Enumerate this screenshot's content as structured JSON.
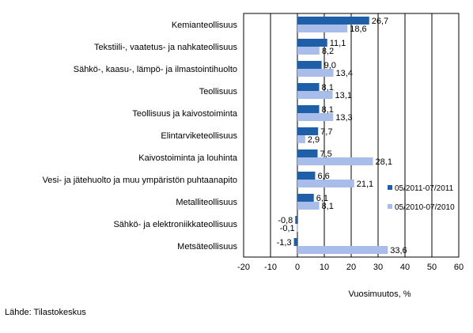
{
  "chart_data": {
    "type": "bar",
    "orientation": "horizontal",
    "categories": [
      "Kemianteollisuus",
      "Tekstiili-, vaatetus- ja nahkateollisuus",
      "Sähkö-, kaasu-, lämpö- ja ilmastointihuolto",
      "Teollisuus",
      "Teollisuus ja kaivostoiminta",
      "Elintarviketeollisuus",
      "Kaivostoiminta ja louhinta",
      "Vesi- ja jätehuolto ja muu ympäristön puhtaanapito",
      "Metalliteollisuus",
      "Sähkö- ja elektroniikkateollisuus",
      "Metsäteollisuus"
    ],
    "series": [
      {
        "name": "05/2011-07/2011",
        "color": "#1F5FA8",
        "values": [
          26.7,
          11.1,
          9.0,
          8.1,
          8.1,
          7.7,
          7.5,
          6.6,
          6.1,
          -0.8,
          -1.3
        ],
        "labels": [
          "26,7",
          "11,1",
          "9,0",
          "8,1",
          "8,1",
          "7,7",
          "7,5",
          "6,6",
          "6,1",
          "-0,8",
          "-1,3"
        ]
      },
      {
        "name": "05/2010-07/2010",
        "color": "#A9BDEB",
        "values": [
          18.6,
          8.2,
          13.4,
          13.1,
          13.3,
          2.9,
          28.1,
          21.1,
          8.1,
          -0.1,
          33.6
        ],
        "labels": [
          "18,6",
          "8,2",
          "13,4",
          "13,1",
          "13,3",
          "2,9",
          "28,1",
          "21,1",
          "8,1",
          "-0,1",
          "33,6"
        ]
      }
    ],
    "xlim": [
      -20,
      60
    ],
    "xticks": [
      -20,
      -10,
      0,
      10,
      20,
      30,
      40,
      50,
      60
    ],
    "xlabel": "Vuosimuutos, %",
    "grid": true,
    "legend_position": "right"
  },
  "source": "Lähde: Tilastokeskus"
}
